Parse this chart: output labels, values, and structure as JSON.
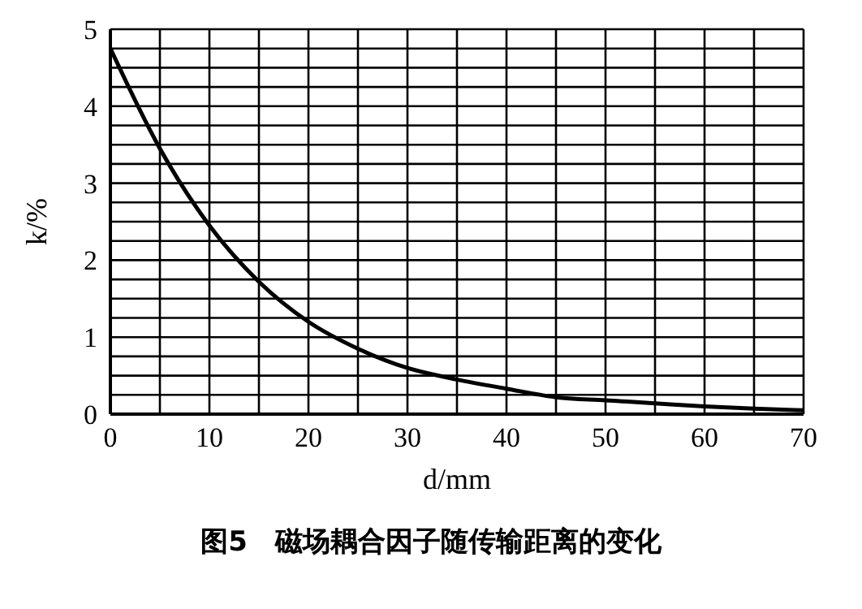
{
  "chart_data": {
    "type": "line",
    "title": "图5　磁场耦合因子随传输距离的变化",
    "xlabel": "d/mm",
    "ylabel": "k/%",
    "x": [
      0,
      5,
      10,
      15,
      20,
      25,
      30,
      35,
      40,
      45,
      50,
      55,
      60,
      65,
      70
    ],
    "series": [
      {
        "color": "#000000",
        "values": [
          4.75,
          3.45,
          2.45,
          1.72,
          1.2,
          0.85,
          0.6,
          0.45,
          0.33,
          0.22,
          0.18,
          0.14,
          0.1,
          0.07,
          0.05
        ]
      }
    ],
    "xlim": [
      0,
      70
    ],
    "ylim": [
      0,
      5
    ],
    "xticks": [
      0,
      {
        "value": 5,
        "label": null
      },
      10,
      {
        "value": 15,
        "label": null
      },
      20,
      {
        "value": 25,
        "label": null
      },
      30,
      {
        "value": 35,
        "label": null
      },
      40,
      {
        "value": 45,
        "label": null
      },
      50,
      {
        "value": 55,
        "label": null
      },
      60,
      {
        "value": 65,
        "label": null
      },
      70
    ],
    "yticks": [
      0,
      {
        "value": 0.25,
        "label": null
      },
      {
        "value": 0.5,
        "label": null
      },
      {
        "value": 0.75,
        "label": null
      },
      1,
      {
        "value": 1.25,
        "label": null
      },
      {
        "value": 1.5,
        "label": null
      },
      {
        "value": 1.75,
        "label": null
      },
      2,
      {
        "value": 2.25,
        "label": null
      },
      {
        "value": 2.5,
        "label": null
      },
      {
        "value": 2.75,
        "label": null
      },
      3,
      {
        "value": 3.25,
        "label": null
      },
      {
        "value": 3.5,
        "label": null
      },
      {
        "value": 3.75,
        "label": null
      },
      4,
      {
        "value": 4.25,
        "label": null
      },
      {
        "value": 4.5,
        "label": null
      },
      {
        "value": 4.75,
        "label": null
      },
      5
    ],
    "grid": true,
    "marker": "none",
    "line_style": "solid"
  }
}
